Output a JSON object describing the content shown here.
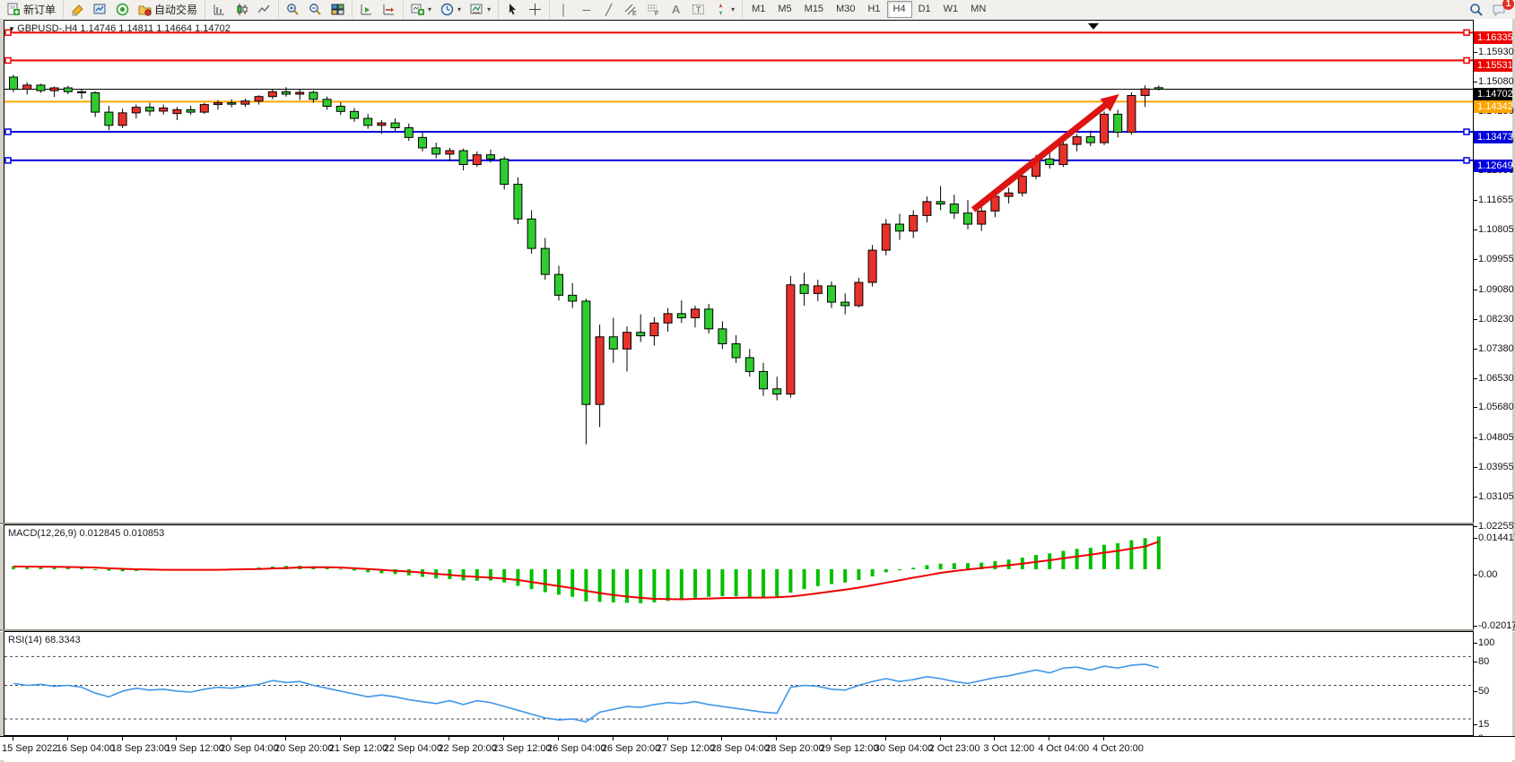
{
  "toolbar": {
    "new_order_label": "新订单",
    "autotrading_label": "自动交易",
    "timeframes": [
      "M1",
      "M5",
      "M15",
      "M30",
      "H1",
      "H4",
      "D1",
      "W1",
      "MN"
    ],
    "active_timeframe": "H4",
    "notification_count": "1",
    "icons": [
      "new-order",
      "highlighter",
      "charts-window",
      "signals",
      "autotrading",
      "bar-chart",
      "candlestick-chart",
      "line-chart",
      "zoom-in",
      "zoom-out",
      "tile-windows",
      "auto-scroll",
      "chart-shift",
      "new-chart",
      "period-clock",
      "templates",
      "cursor",
      "crosshair",
      "vertical-line",
      "horizontal-line",
      "trendline",
      "equidistant-channel",
      "fibonacci",
      "text",
      "text-label",
      "arrows",
      "search",
      "chat"
    ]
  },
  "chart_data": {
    "type": "candlestick",
    "symbol": "GBPUSD-.H4",
    "title": "GBPUSD-.H4 1.14746 1.14811 1.14664 1.14702",
    "last_bar": {
      "open": "1.14746",
      "high": "1.14811",
      "low": "1.14664",
      "close": "1.14702"
    },
    "colors": {
      "up": "#e8312a",
      "down": "#2fcc2f",
      "wick": "#000000",
      "resistance": "#ee0000",
      "support": "#0000dd",
      "pivot": "#ffa500",
      "current": "#000000",
      "macd_hist": "#00c000",
      "macd_signal": "#ee0000",
      "rsi_line": "#3f95e8",
      "arrow": "#dd1512"
    },
    "x_labels": [
      "15 Sep 2022",
      "16 Sep 04:00",
      "18 Sep 23:00",
      "19 Sep 12:00",
      "20 Sep 04:00",
      "20 Sep 20:00",
      "21 Sep 12:00",
      "22 Sep 04:00",
      "22 Sep 20:00",
      "23 Sep 12:00",
      "26 Sep 04:00",
      "26 Sep 20:00",
      "27 Sep 12:00",
      "28 Sep 04:00",
      "28 Sep 20:00",
      "29 Sep 12:00",
      "30 Sep 04:00",
      "2 Oct 23:00",
      "3 Oct 12:00",
      "4 Oct 04:00",
      "4 Oct 20:00"
    ],
    "y_ticks": [
      "1.15930",
      "1.15080",
      "1.14230",
      "1.13380",
      "1.12530",
      "1.11655",
      "1.10805",
      "1.09955",
      "1.09080",
      "1.08230",
      "1.07380",
      "1.06530",
      "1.05680",
      "1.04805",
      "1.03955",
      "1.03105",
      "1.02255"
    ],
    "levels": [
      {
        "price": 1.16335,
        "label": "1.16335",
        "color": "#ee0000",
        "kind": "resistance",
        "handles": true
      },
      {
        "price": 1.15531,
        "label": "1.15531",
        "color": "#ee0000",
        "kind": "resistance",
        "handles": true
      },
      {
        "price": 1.14702,
        "label": "1.14702",
        "color": "#000000",
        "kind": "current-price",
        "handles": false
      },
      {
        "price": 1.14342,
        "label": "1.14342",
        "color": "#ffa500",
        "kind": "pivot",
        "handles": false
      },
      {
        "price": 1.13473,
        "label": "1.13473",
        "color": "#0000dd",
        "kind": "support",
        "handles": true
      },
      {
        "price": 1.12649,
        "label": "1.12649",
        "color": "#0000dd",
        "kind": "support",
        "handles": true
      }
    ],
    "candles": [
      [
        1.1505,
        1.1512,
        1.1462,
        1.147
      ],
      [
        1.147,
        1.149,
        1.1455,
        1.1482
      ],
      [
        1.1482,
        1.1486,
        1.146,
        1.1466
      ],
      [
        1.1466,
        1.1478,
        1.1448,
        1.1474
      ],
      [
        1.1474,
        1.148,
        1.1456,
        1.1463
      ],
      [
        1.1463,
        1.147,
        1.1442,
        1.146
      ],
      [
        1.146,
        1.1464,
        1.139,
        1.1404
      ],
      [
        1.1404,
        1.1422,
        1.1352,
        1.1366
      ],
      [
        1.1366,
        1.1414,
        1.1358,
        1.1402
      ],
      [
        1.1402,
        1.1426,
        1.1386,
        1.1418
      ],
      [
        1.1418,
        1.1431,
        1.1394,
        1.1407
      ],
      [
        1.1407,
        1.1426,
        1.1397,
        1.1416
      ],
      [
        1.14,
        1.1419,
        1.1381,
        1.1411
      ],
      [
        1.1411,
        1.1423,
        1.1396,
        1.1404
      ],
      [
        1.1404,
        1.1431,
        1.1399,
        1.1426
      ],
      [
        1.1426,
        1.1439,
        1.1411,
        1.1431
      ],
      [
        1.1431,
        1.1441,
        1.1418,
        1.1427
      ],
      [
        1.1427,
        1.1443,
        1.1419,
        1.1436
      ],
      [
        1.1436,
        1.1453,
        1.1426,
        1.1449
      ],
      [
        1.1449,
        1.1471,
        1.1441,
        1.1463
      ],
      [
        1.1463,
        1.1476,
        1.1449,
        1.1456
      ],
      [
        1.1456,
        1.1469,
        1.1439,
        1.1461
      ],
      [
        1.1461,
        1.1466,
        1.1431,
        1.1441
      ],
      [
        1.1441,
        1.1449,
        1.1411,
        1.1421
      ],
      [
        1.1421,
        1.1433,
        1.1396,
        1.1406
      ],
      [
        1.1406,
        1.1416,
        1.1376,
        1.1386
      ],
      [
        1.1386,
        1.1399,
        1.1356,
        1.1366
      ],
      [
        1.1366,
        1.1381,
        1.1341,
        1.1373
      ],
      [
        1.1373,
        1.1386,
        1.1349,
        1.1359
      ],
      [
        1.1359,
        1.1371,
        1.1321,
        1.1331
      ],
      [
        1.1331,
        1.1346,
        1.1291,
        1.1301
      ],
      [
        1.1301,
        1.1316,
        1.1271,
        1.1283
      ],
      [
        1.1283,
        1.1301,
        1.1263,
        1.1293
      ],
      [
        1.1293,
        1.1299,
        1.1236,
        1.1253
      ],
      [
        1.1253,
        1.1291,
        1.1246,
        1.1281
      ],
      [
        1.1281,
        1.1296,
        1.1259,
        1.1269
      ],
      [
        1.1269,
        1.1276,
        1.1181,
        1.1196
      ],
      [
        1.1196,
        1.1216,
        1.1081,
        1.1096
      ],
      [
        1.1096,
        1.1121,
        1.0996,
        1.1011
      ],
      [
        1.1011,
        1.1041,
        1.0921,
        1.0936
      ],
      [
        1.0936,
        1.0961,
        1.0861,
        1.0876
      ],
      [
        1.0876,
        1.0911,
        1.0839,
        1.0859
      ],
      [
        1.0859,
        1.0866,
        1.0446,
        1.0561
      ],
      [
        1.0561,
        1.0791,
        1.0496,
        1.0756
      ],
      [
        1.0756,
        1.0811,
        1.0681,
        1.0721
      ],
      [
        1.0721,
        1.0786,
        1.0656,
        1.0769
      ],
      [
        1.0769,
        1.0821,
        1.0741,
        1.0759
      ],
      [
        1.0759,
        1.0813,
        1.0731,
        1.0796
      ],
      [
        1.0796,
        1.0839,
        1.0771,
        1.0823
      ],
      [
        1.0823,
        1.0861,
        1.0796,
        1.0811
      ],
      [
        1.0811,
        1.0846,
        1.0783,
        1.0836
      ],
      [
        1.0836,
        1.0851,
        1.0766,
        1.0779
      ],
      [
        1.0779,
        1.0801,
        1.0721,
        1.0736
      ],
      [
        1.0736,
        1.0761,
        1.0681,
        1.0696
      ],
      [
        1.0696,
        1.0721,
        1.0641,
        1.0656
      ],
      [
        1.0656,
        1.0681,
        1.0586,
        1.0606
      ],
      [
        1.0606,
        1.0641,
        1.0573,
        1.0591
      ],
      [
        1.0591,
        1.0931,
        1.0581,
        1.0906
      ],
      [
        1.0906,
        1.0941,
        1.0846,
        1.0881
      ],
      [
        1.0881,
        1.0921,
        1.0859,
        1.0903
      ],
      [
        1.0903,
        1.0916,
        1.0839,
        1.0856
      ],
      [
        1.0856,
        1.0881,
        1.0821,
        1.0846
      ],
      [
        1.0846,
        1.0926,
        1.0841,
        1.0913
      ],
      [
        1.0913,
        1.1021,
        1.0901,
        1.1006
      ],
      [
        1.1006,
        1.1096,
        1.0991,
        1.1081
      ],
      [
        1.1081,
        1.1111,
        1.1036,
        1.1061
      ],
      [
        1.1061,
        1.1121,
        1.1041,
        1.1106
      ],
      [
        1.1106,
        1.1161,
        1.1086,
        1.1146
      ],
      [
        1.1146,
        1.1191,
        1.1121,
        1.1139
      ],
      [
        1.1139,
        1.1166,
        1.1096,
        1.1113
      ],
      [
        1.1113,
        1.1151,
        1.1066,
        1.1081
      ],
      [
        1.1081,
        1.1131,
        1.1061,
        1.1119
      ],
      [
        1.1119,
        1.1171,
        1.1101,
        1.1161
      ],
      [
        1.1161,
        1.1186,
        1.1141,
        1.1171
      ],
      [
        1.1171,
        1.1231,
        1.1161,
        1.1219
      ],
      [
        1.1219,
        1.1281,
        1.1211,
        1.1269
      ],
      [
        1.1269,
        1.1301,
        1.1241,
        1.1253
      ],
      [
        1.1253,
        1.1321,
        1.1246,
        1.1311
      ],
      [
        1.1311,
        1.1341,
        1.1291,
        1.1333
      ],
      [
        1.1333,
        1.1351,
        1.1306,
        1.1316
      ],
      [
        1.1316,
        1.1406,
        1.1309,
        1.1398
      ],
      [
        1.1398,
        1.1411,
        1.1331,
        1.1346
      ],
      [
        1.1346,
        1.1461,
        1.1339,
        1.1452
      ],
      [
        1.1452,
        1.1481,
        1.1419,
        1.1471
      ],
      [
        1.14746,
        1.14811,
        1.14664,
        1.14702
      ]
    ],
    "arrow_annotation": {
      "from_candle": 70.4,
      "from_price": 1.11225,
      "to_candle": 81.1,
      "to_price": 1.1456
    },
    "macd": {
      "label": "MACD(12,26,9) 0.012845 0.010853",
      "name": "MACD(12,26,9)",
      "value_main": "0.012845",
      "value_signal": "0.010853",
      "ticks": [
        {
          "v": 0.014417,
          "label": "0.014417"
        },
        {
          "v": 0,
          "label": "0.00"
        },
        {
          "v": -0.020179,
          "label": "-0.020179"
        }
      ],
      "histogram": [
        0.0012,
        0.001,
        0.0009,
        0.0008,
        0.0006,
        0.0005,
        0.0,
        -0.0006,
        -0.0008,
        -0.0007,
        -0.0005,
        -0.0004,
        -0.0003,
        -0.0003,
        -0.0002,
        0.0,
        0.0002,
        0.0004,
        0.0007,
        0.0011,
        0.0013,
        0.0014,
        0.0012,
        0.0008,
        0.0002,
        -0.0005,
        -0.0012,
        -0.0016,
        -0.0019,
        -0.0024,
        -0.003,
        -0.0036,
        -0.0039,
        -0.0044,
        -0.0045,
        -0.0044,
        -0.0052,
        -0.0065,
        -0.0078,
        -0.009,
        -0.01,
        -0.0108,
        -0.0126,
        -0.0128,
        -0.013,
        -0.0132,
        -0.0133,
        -0.013,
        -0.0124,
        -0.0118,
        -0.0112,
        -0.0108,
        -0.0106,
        -0.0106,
        -0.0108,
        -0.011,
        -0.011,
        -0.0092,
        -0.0078,
        -0.0066,
        -0.0058,
        -0.0052,
        -0.0042,
        -0.0028,
        -0.0012,
        -0.0004,
        0.0006,
        0.0016,
        0.0022,
        0.0024,
        0.0024,
        0.0026,
        0.0032,
        0.0038,
        0.0046,
        0.0056,
        0.0062,
        0.0072,
        0.008,
        0.0084,
        0.0096,
        0.0102,
        0.0114,
        0.0122,
        0.012845
      ],
      "signal": [
        0.0011,
        0.00105,
        0.001,
        0.00095,
        0.00088,
        0.0008,
        0.00064,
        0.0004,
        0.00016,
        0.0,
        -0.0001,
        -0.0002,
        -0.0002,
        -0.0002,
        -0.0002,
        -0.0002,
        -0.0001,
        0.0,
        0.0001,
        0.0003,
        0.0005,
        0.0007,
        0.0008,
        0.0008,
        0.0007,
        0.0004,
        0.0001,
        -0.0002,
        -0.0006,
        -0.0009,
        -0.0013,
        -0.0018,
        -0.0022,
        -0.0027,
        -0.003,
        -0.0033,
        -0.0037,
        -0.0042,
        -0.005,
        -0.0058,
        -0.0066,
        -0.0074,
        -0.0085,
        -0.0093,
        -0.0101,
        -0.0107,
        -0.0112,
        -0.0116,
        -0.0117,
        -0.0118,
        -0.0116,
        -0.0115,
        -0.0113,
        -0.0112,
        -0.0111,
        -0.0111,
        -0.011,
        -0.0107,
        -0.0101,
        -0.0094,
        -0.0087,
        -0.008,
        -0.0072,
        -0.0063,
        -0.0053,
        -0.0043,
        -0.0033,
        -0.0024,
        -0.0014,
        -0.0007,
        -0.0001,
        0.0005,
        0.001,
        0.0016,
        0.0022,
        0.0029,
        0.0035,
        0.0043,
        0.005,
        0.0057,
        0.0065,
        0.0072,
        0.0081,
        0.0089,
        0.010853
      ]
    },
    "rsi": {
      "label": "RSI(14) 68.3343",
      "name": "RSI(14)",
      "value": "68.3343",
      "ticks": [
        {
          "v": 100,
          "label": "100"
        },
        {
          "v": 80,
          "label": "80"
        },
        {
          "v": 50,
          "label": "50"
        },
        {
          "v": 15,
          "label": "15"
        },
        {
          "v": 0,
          "label": "0"
        }
      ],
      "guide_levels": [
        80,
        50,
        15
      ],
      "values": [
        52,
        50,
        51,
        49,
        50,
        48,
        42,
        38,
        44,
        47,
        45,
        46,
        44,
        43,
        46,
        48,
        47,
        49,
        51,
        55,
        53,
        54,
        50,
        47,
        44,
        41,
        38,
        40,
        38,
        35,
        33,
        31,
        34,
        30,
        34,
        32,
        28,
        24,
        20,
        16,
        14,
        15,
        12,
        22,
        25,
        28,
        27,
        30,
        32,
        31,
        33,
        30,
        28,
        26,
        24,
        22,
        21,
        48,
        50,
        49,
        46,
        45,
        50,
        54,
        57,
        54,
        56,
        59,
        57,
        54,
        52,
        55,
        58,
        60,
        63,
        66,
        63,
        68,
        69,
        66,
        70,
        68,
        71,
        72,
        68.33
      ]
    }
  }
}
